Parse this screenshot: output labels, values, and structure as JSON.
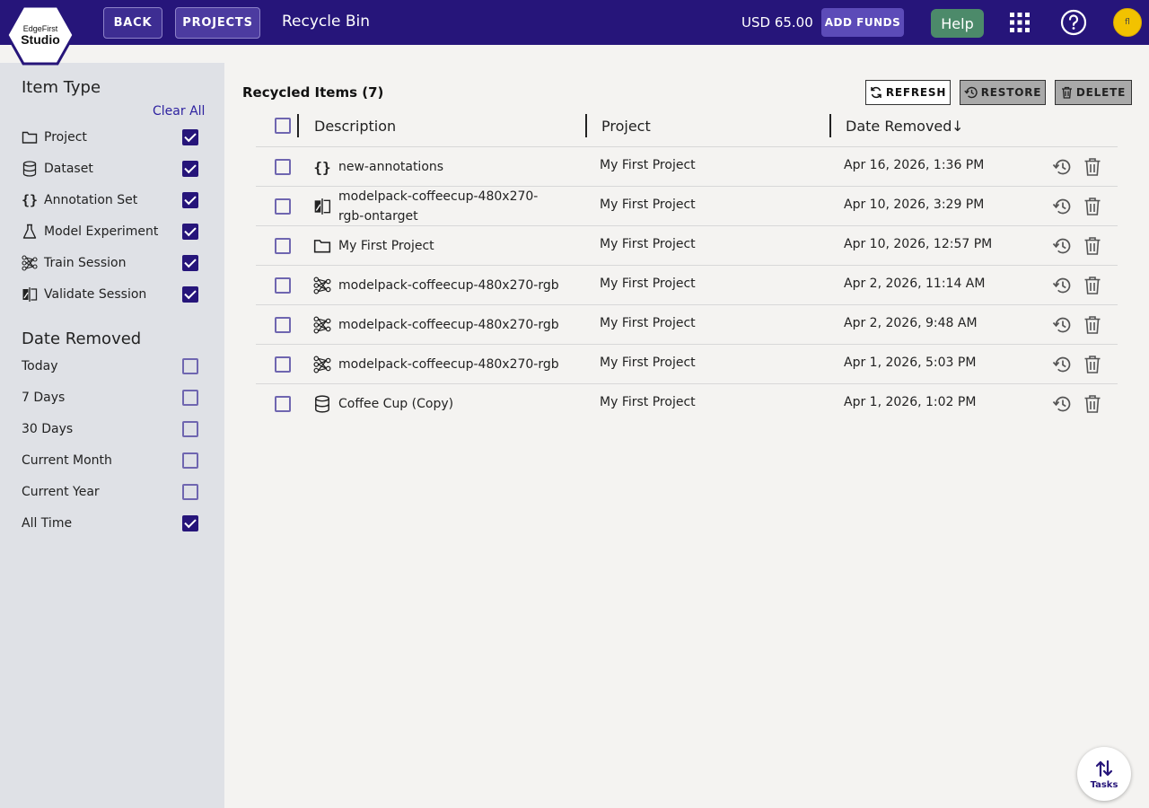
{
  "header": {
    "logo_line1": "EdgeFirst",
    "logo_line2": "Studio",
    "back_label": "BACK",
    "projects_label": "PROJECTS",
    "page_title": "Recycle Bin",
    "balance": "USD 65.00",
    "add_funds_label": "ADD FUNDS",
    "help_label": "Help",
    "avatar_initials": "fl",
    "icons": [
      "apps-grid-icon",
      "help-circle-icon"
    ]
  },
  "sidebar": {
    "item_type_heading": "Item Type",
    "clear_all_label": "Clear All",
    "item_types": [
      {
        "label": "Project",
        "icon": "folder-icon",
        "checked": true
      },
      {
        "label": "Dataset",
        "icon": "database-icon",
        "checked": true
      },
      {
        "label": "Annotation Set",
        "icon": "braces-icon",
        "checked": true
      },
      {
        "label": "Model Experiment",
        "icon": "flask-icon",
        "checked": true
      },
      {
        "label": "Train Session",
        "icon": "network-icon",
        "checked": true
      },
      {
        "label": "Validate Session",
        "icon": "compare-icon",
        "checked": true
      }
    ],
    "date_heading": "Date Removed",
    "date_options": [
      {
        "label": "Today",
        "checked": false
      },
      {
        "label": "7 Days",
        "checked": false
      },
      {
        "label": "30 Days",
        "checked": false
      },
      {
        "label": "Current Month",
        "checked": false
      },
      {
        "label": "Current Year",
        "checked": false
      },
      {
        "label": "All Time",
        "checked": true
      }
    ]
  },
  "main": {
    "title": "Recycled Items (7)",
    "refresh_label": "REFRESH",
    "restore_label": "RESTORE",
    "delete_label": "DELETE",
    "columns": {
      "description": "Description",
      "project": "Project",
      "date_removed": "Date Removed",
      "sort_indicator": "↓"
    },
    "rows": [
      {
        "icon": "braces-icon",
        "description": "new-annotations",
        "project": "My First Project",
        "date": "Apr 16, 2026, 1:36 PM"
      },
      {
        "icon": "compare-icon",
        "description": "modelpack-coffeecup-480x270-rgb-ontarget",
        "project": "My First Project",
        "date": "Apr 10, 2026, 3:29 PM"
      },
      {
        "icon": "folder-icon",
        "description": "My First Project",
        "project": "My First Project",
        "date": "Apr 10, 2026, 12:57 PM"
      },
      {
        "icon": "network-icon",
        "description": "modelpack-coffeecup-480x270-rgb",
        "project": "My First Project",
        "date": "Apr 2, 2026, 11:14 AM"
      },
      {
        "icon": "network-icon",
        "description": "modelpack-coffeecup-480x270-rgb",
        "project": "My First Project",
        "date": "Apr 2, 2026, 9:48 AM"
      },
      {
        "icon": "network-icon",
        "description": "modelpack-coffeecup-480x270-rgb",
        "project": "My First Project",
        "date": "Apr 1, 2026, 5:03 PM"
      },
      {
        "icon": "database-icon",
        "description": "Coffee Cup (Copy)",
        "project": "My First Project",
        "date": "Apr 1, 2026, 1:02 PM"
      }
    ]
  },
  "tasks_label": "Tasks",
  "colors": {
    "brand": "#26157a",
    "help_button": "#4c8a6a",
    "avatar": "#f2c200",
    "sidebar_bg": "#dfe1e6"
  }
}
